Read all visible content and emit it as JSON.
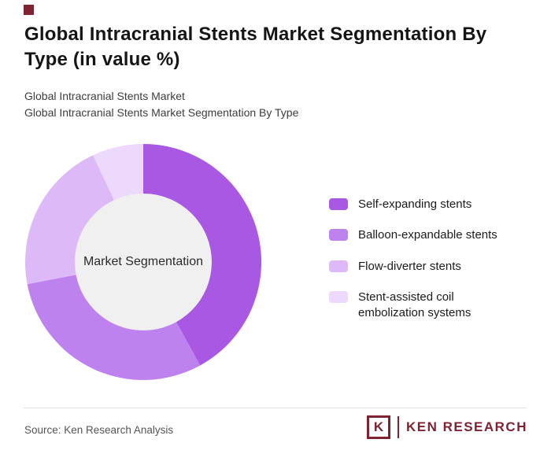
{
  "brand": {
    "accent_color": "#7d2332"
  },
  "header": {
    "title": "Global Intracranial Stents Market Segmentation By Type (in value %)",
    "subtitle1": "Global Intracranial Stents Market",
    "subtitle2": "Global Intracranial Stents Market Segmentation By Type"
  },
  "chart_data": {
    "type": "pie",
    "donut": true,
    "title": "Global Intracranial Stents Market Segmentation By Type (in value %)",
    "center_label": "Market Segmentation",
    "categories": [
      "Self-expanding stents",
      "Balloon-expandable stents",
      "Flow-diverter stents",
      "Stent-assisted coil embolization systems"
    ],
    "values": [
      42,
      30,
      21,
      7
    ],
    "colors": [
      "#a958e3",
      "#bd82ee",
      "#ddb9f7",
      "#ecd9fb"
    ],
    "legend_position": "right",
    "start_angle_deg": 0,
    "direction": "clockwise"
  },
  "footer": {
    "source": "Source: Ken Research Analysis",
    "logo_letter": "K",
    "logo_brand": "KEN RESEARCH"
  }
}
